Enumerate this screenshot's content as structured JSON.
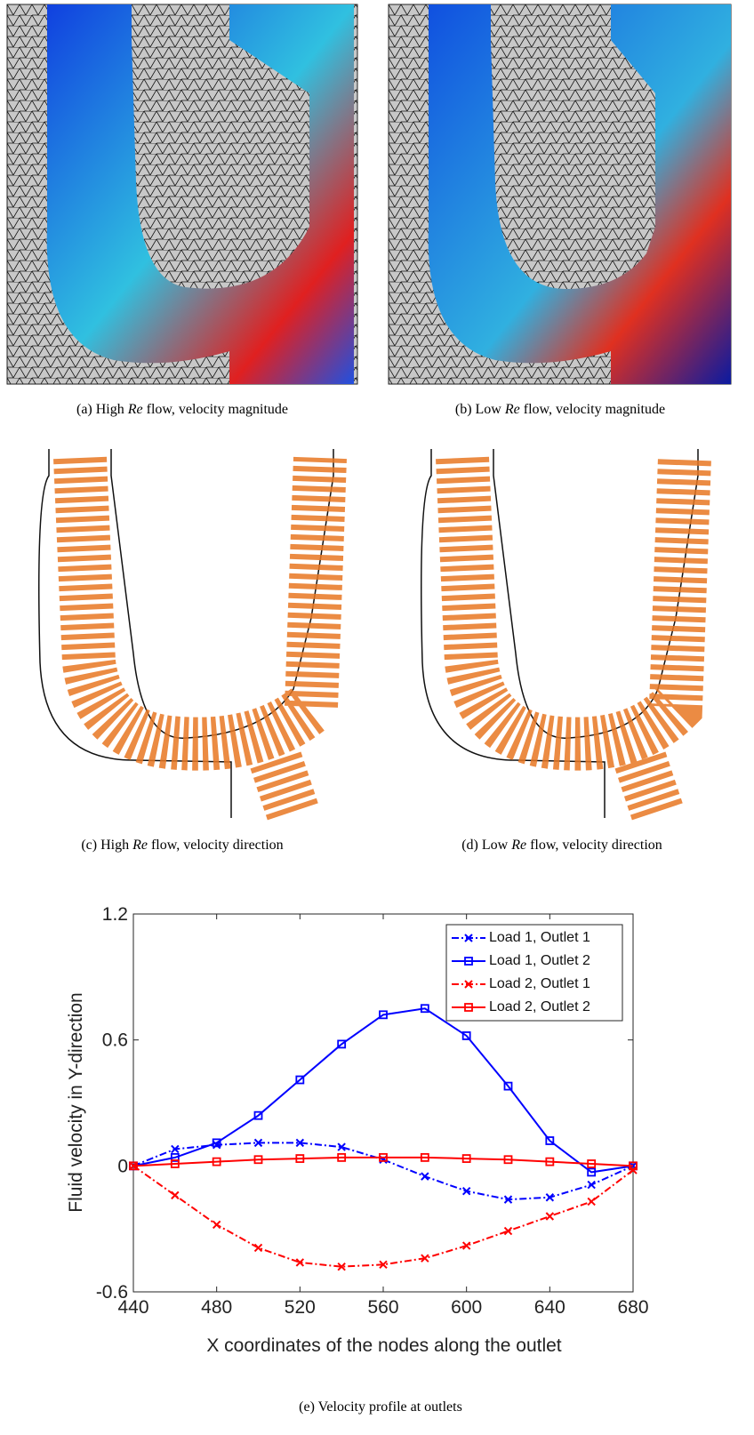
{
  "panels": [
    {
      "label": "(a)",
      "prefix": "High",
      "em": "Re",
      "suffix": "flow, velocity magnitude"
    },
    {
      "label": "(b)",
      "prefix": "Low",
      "em": "Re",
      "suffix": "flow, velocity magnitude"
    },
    {
      "label": "(c)",
      "prefix": "High",
      "em": "Re",
      "suffix": "flow, velocity direction"
    },
    {
      "label": "(d)",
      "prefix": "Low",
      "em": "Re",
      "suffix": "flow, velocity direction"
    }
  ],
  "chart_data": {
    "type": "line",
    "caption_label": "(e)",
    "caption": "Velocity profile at outlets",
    "x_label": "X coordinates of the nodes along the outlet",
    "y_label": "Fluid velocity in Y-direction",
    "x": [
      440,
      460,
      480,
      500,
      520,
      540,
      560,
      580,
      600,
      620,
      640,
      660,
      680
    ],
    "xlim": [
      440,
      680
    ],
    "xticks": [
      440,
      480,
      520,
      560,
      600,
      640,
      680
    ],
    "ylim": [
      -0.6,
      1.2
    ],
    "yticks": [
      -0.6,
      0,
      0.6,
      1.2
    ],
    "legend": "upper right",
    "series": [
      {
        "name": "Load 1, Outlet 1",
        "color": "#0000ff",
        "style": "dashdot",
        "marker": "x",
        "values": [
          0,
          0.08,
          0.1,
          0.11,
          0.11,
          0.09,
          0.03,
          -0.05,
          -0.12,
          -0.16,
          -0.15,
          -0.09,
          0
        ]
      },
      {
        "name": "Load 1, Outlet 2",
        "color": "#0000ff",
        "style": "solid",
        "marker": "square",
        "values": [
          0,
          0.04,
          0.11,
          0.24,
          0.41,
          0.58,
          0.72,
          0.75,
          0.62,
          0.38,
          0.12,
          -0.03,
          0
        ]
      },
      {
        "name": "Load 2, Outlet 1",
        "color": "#ff0000",
        "style": "dashdot",
        "marker": "x",
        "values": [
          0,
          -0.14,
          -0.28,
          -0.39,
          -0.46,
          -0.48,
          -0.47,
          -0.44,
          -0.38,
          -0.31,
          -0.24,
          -0.17,
          -0.02
        ]
      },
      {
        "name": "Load 2, Outlet 2",
        "color": "#ff0000",
        "style": "solid",
        "marker": "square",
        "values": [
          0,
          0.01,
          0.02,
          0.03,
          0.035,
          0.04,
          0.04,
          0.04,
          0.035,
          0.03,
          0.02,
          0.01,
          0
        ]
      }
    ]
  }
}
